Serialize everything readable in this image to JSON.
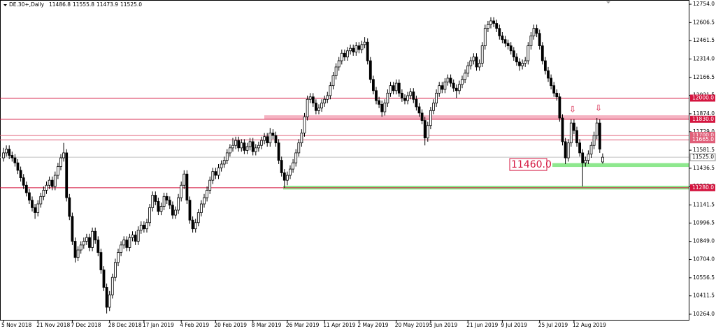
{
  "chart_data": {
    "type": "candlestick",
    "title": "DE.30+,Daily",
    "last_ohlc_labels": [
      "11486.8",
      "11555.8",
      "11473.9",
      "11525.0"
    ],
    "ylim": [
      10219,
      12788
    ],
    "yticks": [
      {
        "value": 12754,
        "label": "12754.0"
      },
      {
        "value": 12606.5,
        "label": "12606.5"
      },
      {
        "value": 12461.5,
        "label": "12461.5"
      },
      {
        "value": 12314,
        "label": "12314.0"
      },
      {
        "value": 12166.5,
        "label": "12166.5"
      },
      {
        "value": 12021.5,
        "label": "12021.5"
      },
      {
        "value": 11874,
        "label": "11874.0"
      },
      {
        "value": 11729,
        "label": "11729.0"
      },
      {
        "value": 11581.5,
        "label": "11581.5"
      },
      {
        "value": 11436.5,
        "label": "11436.5"
      },
      {
        "value": 11289,
        "label": "11289.0"
      },
      {
        "value": 11141.5,
        "label": "11141.5"
      },
      {
        "value": 10996.5,
        "label": "10996.5"
      },
      {
        "value": 10849,
        "label": "10849.0"
      },
      {
        "value": 10704,
        "label": "10704.0"
      },
      {
        "value": 10556.5,
        "label": "10556.5"
      },
      {
        "value": 10411.5,
        "label": "10411.5"
      },
      {
        "value": 10264,
        "label": "10264.0"
      }
    ],
    "levels": [
      {
        "value": 12000,
        "label": "12000.0",
        "color": "#d4153f"
      },
      {
        "value": 11830,
        "label": "11830.0",
        "color": "#d4153f"
      },
      {
        "value": 11700,
        "label": "11700.0",
        "color": "#e0607a"
      },
      {
        "value": 11665,
        "label": "11665.0",
        "color": "#e0607a"
      },
      {
        "value": 11525,
        "label": "11525.0",
        "color": "#c0c0c0"
      },
      {
        "value": 11280,
        "label": "11280.0",
        "color": "#d4153f"
      }
    ],
    "zones": [
      {
        "from": 11830,
        "to": 11862,
        "color": "#f5b3c2"
      },
      {
        "from": 11447,
        "to": 11478,
        "color": "#8ee88e"
      },
      {
        "from": 11266,
        "to": 11296,
        "color": "#8ee88e"
      }
    ],
    "annotation": {
      "text": "11460.0"
    },
    "categories": [
      "5 Nov 2018",
      null,
      null,
      null,
      null,
      null,
      null,
      null,
      null,
      null,
      null,
      null,
      "21 Nov 2018",
      null,
      null,
      null,
      null,
      null,
      null,
      null,
      null,
      null,
      null,
      null,
      "7 Dec 2018",
      null,
      null,
      null,
      null,
      null,
      null,
      null,
      null,
      null,
      null,
      null,
      null,
      "28 Dec 2018",
      null,
      null,
      null,
      null,
      null,
      null,
      null,
      null,
      null,
      null,
      null,
      "17 Jan 2019",
      null,
      null,
      null,
      null,
      null,
      null,
      null,
      null,
      null,
      null,
      null,
      null,
      "4 Feb 2019",
      null,
      null,
      null,
      null,
      null,
      null,
      null,
      null,
      null,
      null,
      null,
      "20 Feb 2019",
      null,
      null,
      null,
      null,
      null,
      null,
      null,
      null,
      null,
      null,
      null,
      null,
      "8 Mar 2019",
      null,
      null,
      null,
      null,
      null,
      null,
      null,
      null,
      null,
      null,
      null,
      "26 Mar 2019",
      null,
      null,
      null,
      null,
      null,
      null,
      null,
      null,
      null,
      null,
      null,
      null,
      "11 Apr 2019",
      null,
      null,
      null,
      null,
      null,
      null,
      null,
      null,
      null,
      null,
      null,
      "2 May 2019",
      null,
      null,
      null,
      null,
      null,
      null,
      null,
      null,
      null,
      null,
      null,
      null,
      "20 May 2019",
      null,
      null,
      null,
      null,
      null,
      null,
      null,
      null,
      null,
      null,
      null,
      "5 Jun 2019",
      null,
      null,
      null,
      null,
      null,
      null,
      null,
      null,
      null,
      null,
      null,
      null,
      "21 Jun 2019",
      null,
      null,
      null,
      null,
      null,
      null,
      null,
      null,
      null,
      null,
      null,
      "9 Jul 2019",
      null,
      null,
      null,
      null,
      null,
      null,
      null,
      null,
      null,
      null,
      null,
      null,
      "25 Jul 2019",
      null,
      null,
      null,
      null,
      null,
      null,
      null,
      null,
      null,
      null,
      null,
      "12 Aug 2019",
      null,
      null,
      null,
      null,
      null,
      null,
      null,
      null,
      null,
      null
    ],
    "open": [
      11520,
      11560,
      11590,
      11540,
      11520,
      11480,
      11420,
      11360,
      11300,
      11240,
      11180,
      11120,
      11080,
      11150,
      11210,
      11260,
      11300,
      11340,
      11290,
      11380,
      11450,
      11520,
      11560,
      11200,
      11050,
      10850,
      10720,
      10780,
      10820,
      10850,
      10880,
      10800,
      10930,
      10860,
      10760,
      10620,
      10480,
      10320,
      10420,
      10560,
      10680,
      10760,
      10820,
      10860,
      10800,
      10880,
      10900,
      10850,
      10940,
      10980,
      10950,
      11000,
      11120,
      11220,
      11170,
      11090,
      11130,
      11210,
      11180,
      11140,
      11060,
      11100,
      11200,
      11300,
      11390,
      11180,
      11020,
      10950,
      11000,
      11080,
      11150,
      11200,
      11260,
      11340,
      11410,
      11380,
      11440,
      11470,
      11500,
      11560,
      11600,
      11620,
      11660,
      11600,
      11640,
      11580,
      11610,
      11650,
      11570,
      11600,
      11620,
      11660,
      11690,
      11640,
      11720,
      11700,
      11640,
      11500,
      11400,
      11340,
      11380,
      11430,
      11480,
      11560,
      11640,
      11720,
      11850,
      11990,
      12010,
      11960,
      11900,
      11920,
      11960,
      11990,
      12020,
      12100,
      12180,
      12250,
      12300,
      12360,
      12330,
      12380,
      12400,
      12370,
      12420,
      12390,
      12430,
      12450,
      12300,
      12150,
      12060,
      11980,
      11950,
      11890,
      11960,
      12040,
      12100,
      12060,
      12120,
      12040,
      12000,
      11980,
      12020,
      12050,
      11990,
      11930,
      11880,
      11820,
      11680,
      11780,
      11900,
      11960,
      12040,
      12100,
      12070,
      12130,
      12160,
      12120,
      12080,
      12060,
      12110,
      12150,
      12200,
      12260,
      12300,
      12330,
      12250,
      12280,
      12420,
      12560,
      12590,
      12620,
      12600,
      12560,
      12500,
      12470,
      12440,
      12420,
      12380,
      12330,
      12290,
      12260,
      12280,
      12300,
      12420,
      12500,
      12560,
      12520,
      12420,
      12300,
      12220,
      12160,
      12100,
      12040,
      12010,
      11840,
      11650,
      11520,
      11640,
      11800,
      11740,
      11640,
      11560,
      11480,
      11500,
      11550,
      11620,
      11700,
      11800,
      11486.8
    ],
    "high": [
      11600,
      11620,
      11620,
      11570,
      11550,
      11510,
      11450,
      11390,
      11330,
      11270,
      11210,
      11150,
      11180,
      11240,
      11290,
      11330,
      11370,
      11370,
      11410,
      11480,
      11550,
      11640,
      11590,
      11230,
      11080,
      10880,
      10810,
      10850,
      10880,
      10910,
      10910,
      10960,
      10960,
      10890,
      10790,
      10650,
      10510,
      10450,
      10590,
      10710,
      10790,
      10850,
      10890,
      10890,
      10910,
      10930,
      10930,
      10970,
      11010,
      11010,
      11030,
      11150,
      11250,
      11250,
      11200,
      11160,
      11240,
      11240,
      11210,
      11170,
      11130,
      11230,
      11330,
      11420,
      11420,
      11210,
      11050,
      11030,
      11110,
      11180,
      11230,
      11290,
      11370,
      11440,
      11440,
      11470,
      11500,
      11530,
      11590,
      11630,
      11680,
      11690,
      11690,
      11670,
      11670,
      11640,
      11680,
      11680,
      11630,
      11650,
      11690,
      11720,
      11720,
      11760,
      11750,
      11730,
      11670,
      11530,
      11430,
      11410,
      11460,
      11510,
      11590,
      11670,
      11750,
      11880,
      12020,
      12040,
      12040,
      11990,
      11950,
      11990,
      12020,
      12050,
      12130,
      12210,
      12280,
      12330,
      12390,
      12390,
      12410,
      12430,
      12430,
      12450,
      12450,
      12460,
      12490,
      12480,
      12330,
      12180,
      12090,
      12010,
      11980,
      11990,
      12070,
      12130,
      12130,
      12150,
      12150,
      12070,
      12030,
      12050,
      12080,
      12080,
      12020,
      11960,
      11910,
      11850,
      11810,
      11930,
      11990,
      12070,
      12130,
      12130,
      12160,
      12190,
      12190,
      12150,
      12110,
      12140,
      12180,
      12230,
      12290,
      12330,
      12360,
      12360,
      12310,
      12450,
      12590,
      12620,
      12650,
      12650,
      12630,
      12590,
      12530,
      12500,
      12470,
      12450,
      12410,
      12360,
      12320,
      12310,
      12330,
      12450,
      12530,
      12590,
      12590,
      12550,
      12450,
      12330,
      12250,
      12190,
      12130,
      12070,
      12040,
      11870,
      11680,
      11670,
      11830,
      11830,
      11770,
      11670,
      11590,
      11530,
      11580,
      11650,
      11730,
      11840,
      11830,
      11555.8
    ],
    "low": [
      11490,
      11530,
      11510,
      11490,
      11450,
      11390,
      11330,
      11270,
      11210,
      11150,
      11090,
      11030,
      11050,
      11120,
      11180,
      11230,
      11270,
      11260,
      11260,
      11350,
      11420,
      11490,
      11170,
      11020,
      10820,
      10680,
      10690,
      10750,
      10790,
      10820,
      10770,
      10770,
      10830,
      10730,
      10590,
      10450,
      10270,
      10290,
      10390,
      10530,
      10650,
      10730,
      10790,
      10770,
      10770,
      10850,
      10820,
      10820,
      10910,
      10920,
      10920,
      10970,
      11090,
      11140,
      11060,
      11060,
      11100,
      11150,
      11110,
      11030,
      11030,
      11070,
      11170,
      11270,
      11150,
      10990,
      10920,
      10920,
      10970,
      11050,
      11120,
      11170,
      11230,
      11310,
      11350,
      11350,
      11410,
      11440,
      11470,
      11530,
      11570,
      11590,
      11570,
      11570,
      11550,
      11550,
      11580,
      11540,
      11540,
      11570,
      11590,
      11630,
      11610,
      11610,
      11670,
      11610,
      11470,
      11370,
      11280,
      11300,
      11350,
      11400,
      11450,
      11530,
      11610,
      11690,
      11820,
      11960,
      11930,
      11870,
      11870,
      11890,
      11930,
      11960,
      11990,
      12070,
      12150,
      12220,
      12270,
      12300,
      12300,
      12350,
      12340,
      12340,
      12360,
      12360,
      12400,
      12270,
      12120,
      12030,
      11950,
      11920,
      11850,
      11860,
      11930,
      12010,
      12030,
      12030,
      12010,
      11970,
      11950,
      11950,
      11990,
      11960,
      11900,
      11850,
      11790,
      11620,
      11650,
      11750,
      11870,
      11930,
      12010,
      12040,
      12040,
      12100,
      12090,
      12050,
      12000,
      12030,
      12080,
      12120,
      12170,
      12230,
      12270,
      12220,
      12220,
      12250,
      12390,
      12530,
      12560,
      12570,
      12530,
      12470,
      12440,
      12410,
      12390,
      12350,
      12300,
      12260,
      12220,
      12230,
      12250,
      12270,
      12390,
      12470,
      12490,
      12390,
      12270,
      12190,
      12130,
      12070,
      12010,
      11980,
      11810,
      11620,
      11470,
      11490,
      11610,
      11710,
      11610,
      11530,
      11290,
      11450,
      11470,
      11520,
      11590,
      11670,
      11560,
      11473.9
    ],
    "close": [
      11560,
      11590,
      11540,
      11520,
      11480,
      11420,
      11360,
      11300,
      11240,
      11180,
      11120,
      11080,
      11150,
      11210,
      11260,
      11300,
      11340,
      11290,
      11380,
      11450,
      11520,
      11560,
      11200,
      11050,
      10850,
      10720,
      10780,
      10820,
      10850,
      10880,
      10800,
      10930,
      10860,
      10760,
      10620,
      10480,
      10320,
      10420,
      10560,
      10680,
      10760,
      10820,
      10860,
      10800,
      10880,
      10900,
      10850,
      10940,
      10980,
      10950,
      11000,
      11120,
      11220,
      11170,
      11090,
      11130,
      11210,
      11180,
      11140,
      11060,
      11100,
      11200,
      11300,
      11390,
      11180,
      11020,
      10950,
      11000,
      11080,
      11150,
      11200,
      11260,
      11340,
      11410,
      11380,
      11440,
      11470,
      11500,
      11560,
      11600,
      11620,
      11660,
      11600,
      11640,
      11580,
      11610,
      11650,
      11570,
      11600,
      11620,
      11660,
      11690,
      11640,
      11720,
      11700,
      11640,
      11500,
      11400,
      11340,
      11380,
      11430,
      11480,
      11560,
      11640,
      11720,
      11850,
      11990,
      12010,
      11960,
      11900,
      11920,
      11960,
      11990,
      12020,
      12100,
      12180,
      12250,
      12300,
      12360,
      12330,
      12380,
      12400,
      12370,
      12420,
      12390,
      12430,
      12450,
      12300,
      12150,
      12060,
      11980,
      11950,
      11890,
      11960,
      12040,
      12100,
      12060,
      12120,
      12040,
      12000,
      11980,
      12020,
      12050,
      11990,
      11930,
      11880,
      11820,
      11680,
      11780,
      11900,
      11960,
      12040,
      12100,
      12070,
      12130,
      12160,
      12120,
      12080,
      12060,
      12110,
      12150,
      12200,
      12260,
      12300,
      12330,
      12250,
      12280,
      12420,
      12560,
      12590,
      12620,
      12600,
      12560,
      12500,
      12470,
      12440,
      12420,
      12380,
      12330,
      12290,
      12260,
      12280,
      12300,
      12420,
      12500,
      12560,
      12520,
      12420,
      12300,
      12220,
      12160,
      12100,
      12040,
      12010,
      11840,
      11650,
      11520,
      11640,
      11800,
      11740,
      11640,
      11560,
      11480,
      11500,
      11550,
      11620,
      11700,
      11800,
      11590,
      11525
    ]
  }
}
